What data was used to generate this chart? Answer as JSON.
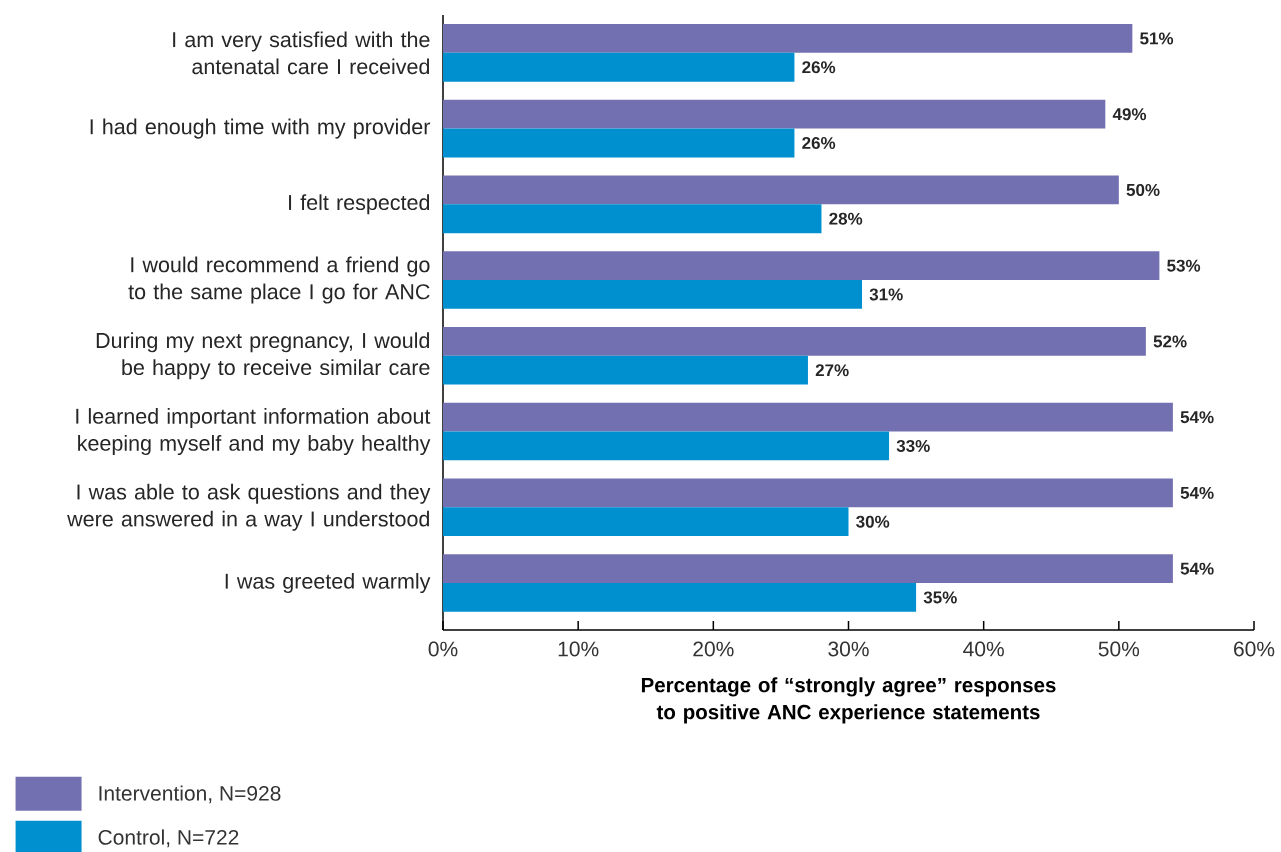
{
  "chart_data": {
    "type": "bar",
    "orientation": "horizontal",
    "xlabel": "Percentage of “strongly agree” responses to positive ANC experience statements",
    "categories": [
      "I am very satisfied with the antenatal care I received",
      "I had enough time with my provider",
      "I felt respected",
      "I would recommend a friend go to the same place I go for ANC",
      "During my next pregnancy, I would be happy to receive similar care",
      "I learned important information about keeping myself and my baby healthy",
      "I was able to ask questions and they were answered in a way I understood",
      "I was greeted warmly"
    ],
    "series": [
      {
        "name": "Intervention, N=928",
        "color": "#7370b2",
        "values": [
          51,
          49,
          50,
          53,
          52,
          54,
          54,
          54
        ],
        "value_labels": [
          "51%",
          "49%",
          "50%",
          "53%",
          "52%",
          "54%",
          "54%",
          "54%"
        ]
      },
      {
        "name": "Control, N=722",
        "color": "#0090d0",
        "values": [
          26,
          26,
          28,
          31,
          27,
          33,
          30,
          35
        ],
        "value_labels": [
          "26%",
          "26%",
          "28%",
          "31%",
          "27%",
          "33%",
          "30%",
          "35%"
        ]
      }
    ],
    "xlim": [
      0,
      60
    ],
    "xticks": [
      {
        "value": 0,
        "label": "0%"
      },
      {
        "value": 10,
        "label": "10%"
      },
      {
        "value": 20,
        "label": "20%"
      },
      {
        "value": 30,
        "label": "30%"
      },
      {
        "value": 40,
        "label": "40%"
      },
      {
        "value": 50,
        "label": "50%"
      },
      {
        "value": 60,
        "label": "60%"
      }
    ],
    "grid": false,
    "legend": "bottom left"
  }
}
